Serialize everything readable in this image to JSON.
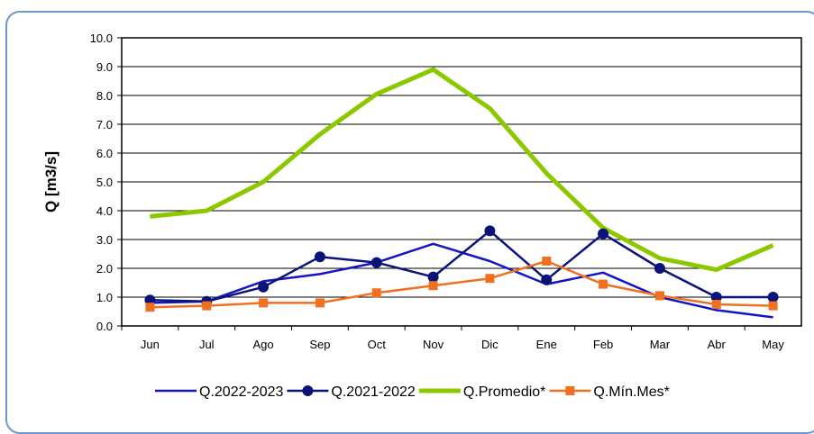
{
  "chart_data": {
    "type": "line",
    "title": "",
    "xlabel": "",
    "ylabel": "Q [m3/s]",
    "ylim": [
      0,
      10
    ],
    "yticks": [
      "0.0",
      "1.0",
      "2.0",
      "3.0",
      "4.0",
      "5.0",
      "6.0",
      "7.0",
      "8.0",
      "9.0",
      "10.0"
    ],
    "grid": true,
    "legend_position": "bottom",
    "categories": [
      "Jun",
      "Jul",
      "Ago",
      "Sep",
      "Oct",
      "Nov",
      "Dic",
      "Ene",
      "Feb",
      "Mar",
      "Abr",
      "May"
    ],
    "series": [
      {
        "name": "Q.2022-2023",
        "color": "#1414c8",
        "marker": "none",
        "values": [
          0.8,
          0.85,
          1.55,
          1.8,
          2.2,
          2.85,
          2.25,
          1.45,
          1.85,
          1.0,
          0.55,
          0.3
        ]
      },
      {
        "name": "Q.2021-2022",
        "color": "#0a1478",
        "marker": "circle",
        "values": [
          0.9,
          0.85,
          1.35,
          2.4,
          2.2,
          1.7,
          3.3,
          1.6,
          3.2,
          2.0,
          1.0,
          1.0
        ]
      },
      {
        "name": "Q.Promedio*",
        "color": "#8cc800",
        "marker": "none",
        "values": [
          3.8,
          4.0,
          5.0,
          6.65,
          8.05,
          8.9,
          7.55,
          5.3,
          3.4,
          2.35,
          1.95,
          2.8
        ]
      },
      {
        "name": "Q.Mín.Mes*",
        "color": "#f07020",
        "marker": "square",
        "values": [
          0.65,
          0.7,
          0.8,
          0.8,
          1.15,
          1.4,
          1.65,
          2.25,
          1.45,
          1.05,
          0.75,
          0.7
        ]
      }
    ]
  }
}
